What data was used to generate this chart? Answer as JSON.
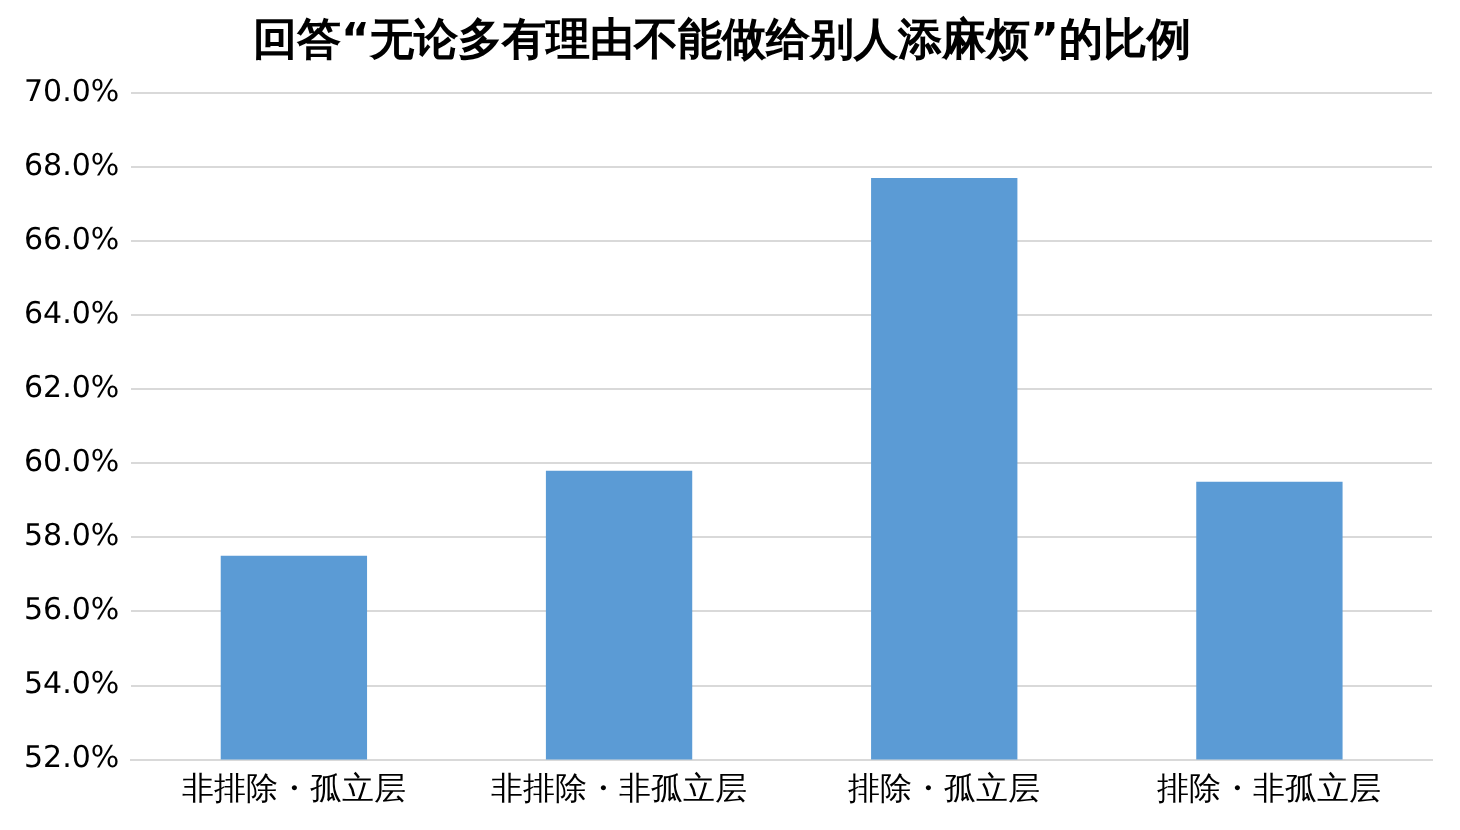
{
  "chart_data": {
    "type": "bar",
    "title": "回答“无论多有理由不能做给别人添麻烦”的比例",
    "categories": [
      "非排除・孤立层",
      "非排除・非孤立层",
      "排除・孤立层",
      "排除・非孤立层"
    ],
    "values": [
      57.5,
      59.8,
      67.7,
      59.5
    ],
    "color": "#5b9bd5",
    "ylim": [
      52,
      70
    ],
    "yticks": [
      {
        "value": 52,
        "label": "52.0%"
      },
      {
        "value": 54,
        "label": "54.0%"
      },
      {
        "value": 56,
        "label": "56.0%"
      },
      {
        "value": 58,
        "label": "58.0%"
      },
      {
        "value": 60,
        "label": "60.0%"
      },
      {
        "value": 62,
        "label": "62.0%"
      },
      {
        "value": 64,
        "label": "64.0%"
      },
      {
        "value": 66,
        "label": "66.0%"
      },
      {
        "value": 68,
        "label": "68.0%"
      },
      {
        "value": 70,
        "label": "70.0%"
      }
    ],
    "grid": "y"
  }
}
